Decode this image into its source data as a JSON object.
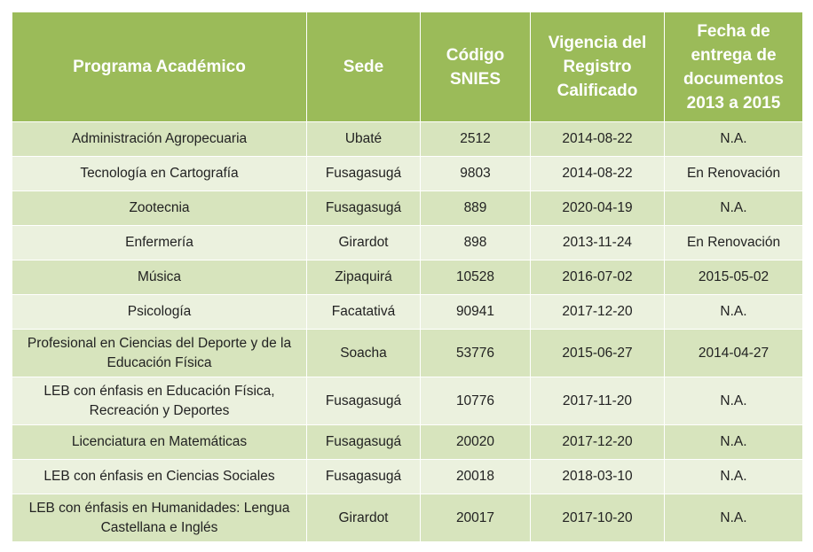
{
  "table": {
    "headers": [
      "Programa Académico",
      "Sede",
      "Código SNIES",
      "Vigencia del Registro Calificado",
      "Fecha de entrega de documentos 2013 a 2015"
    ],
    "rows": [
      {
        "programa": "Administración Agropecuaria",
        "sede": "Ubaté",
        "codigo": "2512",
        "vigencia": "2014-08-22",
        "fecha": "N.A."
      },
      {
        "programa": "Tecnología en Cartografía",
        "sede": "Fusagasugá",
        "codigo": "9803",
        "vigencia": "2014-08-22",
        "fecha": "En Renovación"
      },
      {
        "programa": "Zootecnia",
        "sede": "Fusagasugá",
        "codigo": "889",
        "vigencia": "2020-04-19",
        "fecha": "N.A."
      },
      {
        "programa": "Enfermería",
        "sede": "Girardot",
        "codigo": "898",
        "vigencia": "2013-11-24",
        "fecha": "En Renovación"
      },
      {
        "programa": "Música",
        "sede": "Zipaquirá",
        "codigo": "10528",
        "vigencia": "2016-07-02",
        "fecha": "2015-05-02"
      },
      {
        "programa": "Psicología",
        "sede": "Facatativá",
        "codigo": "90941",
        "vigencia": "2017-12-20",
        "fecha": "N.A."
      },
      {
        "programa": "Profesional en Ciencias del  Deporte y de la Educación Física",
        "sede": "Soacha",
        "codigo": "53776",
        "vigencia": "2015-06-27",
        "fecha": "2014-04-27"
      },
      {
        "programa": "LEB con énfasis en Educación Física, Recreación y Deportes",
        "sede": "Fusagasugá",
        "codigo": "10776",
        "vigencia": "2017-11-20",
        "fecha": "N.A."
      },
      {
        "programa": "Licenciatura en Matemáticas",
        "sede": "Fusagasugá",
        "codigo": "20020",
        "vigencia": "2017-12-20",
        "fecha": "N.A."
      },
      {
        "programa": "LEB con énfasis en Ciencias Sociales",
        "sede": "Fusagasugá",
        "codigo": "20018",
        "vigencia": "2018-03-10",
        "fecha": "N.A."
      },
      {
        "programa": "LEB con énfasis en Humanidades: Lengua Castellana e Inglés",
        "sede": "Girardot",
        "codigo": "20017",
        "vigencia": "2017-10-20",
        "fecha": "N.A."
      }
    ]
  }
}
